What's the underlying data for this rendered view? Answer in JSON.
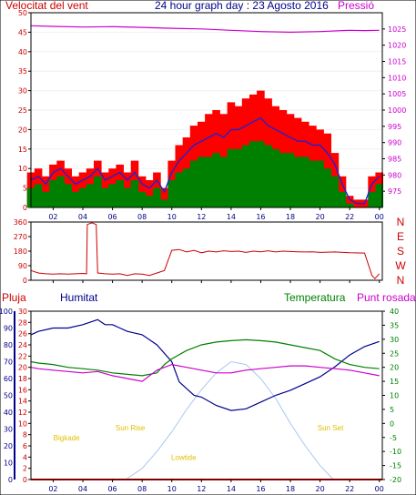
{
  "colors": {
    "wind_max": "#ff0000",
    "wind_avg": "#2222cc",
    "wind_min": "#008000",
    "pressure": "#cc00cc",
    "direction": "#cc0000",
    "rain": "#ff0000",
    "humidity": "#00008b",
    "temperature": "#008000",
    "dewpoint": "#cc00cc",
    "sun_curve": "#a8c8f0",
    "marker_text": "#e0c000",
    "tick_left": "#cc0000",
    "tick_right": "#cc00cc",
    "tick_x": "#000080"
  },
  "chart_data": [
    {
      "id": "wind-pressure",
      "type": "line",
      "title": "24 hour graph day : 23 Agosto 2016",
      "left_label": "Velocitat del vent",
      "right_label": "Pressió",
      "x_ticks": [
        "02",
        "04",
        "06",
        "08",
        "10",
        "12",
        "14",
        "16",
        "18",
        "20",
        "22",
        "00"
      ],
      "xlim": [
        0.5,
        24.2
      ],
      "ylim": [
        0,
        50
      ],
      "y_ticks": [
        "0",
        "5",
        "10",
        "15",
        "20",
        "25",
        "30",
        "35",
        "40",
        "45",
        "50"
      ],
      "y2lim": [
        970,
        1030
      ],
      "y2_ticks": [
        "975",
        "980",
        "985",
        "990",
        "995",
        "1000",
        "1005",
        "1010",
        "1015",
        "1020",
        "1025"
      ],
      "series": [
        {
          "key": "wind_max",
          "style": "bars",
          "x": [
            0.5,
            1,
            1.5,
            2,
            2.5,
            3,
            3.5,
            4,
            4.5,
            5,
            5.5,
            6,
            6.5,
            7,
            7.5,
            8,
            8.5,
            9,
            9.5,
            10,
            10.5,
            11,
            11.5,
            12,
            12.5,
            13,
            13.5,
            14,
            14.5,
            15,
            15.5,
            16,
            16.5,
            17,
            17.5,
            18,
            18.5,
            19,
            19.5,
            20,
            20.5,
            21,
            21.5,
            22,
            22.5,
            23,
            23.5,
            24
          ],
          "y": [
            9,
            10,
            8,
            11,
            12,
            10,
            8,
            9,
            10,
            12,
            9,
            10,
            11,
            9,
            12,
            8,
            7,
            9,
            5,
            12,
            16,
            18,
            21,
            22,
            24,
            25,
            24,
            27,
            26,
            28,
            29,
            30,
            28,
            26,
            25,
            24,
            23,
            22,
            21,
            20,
            19,
            14,
            8,
            3,
            2,
            2,
            8,
            9
          ]
        },
        {
          "key": "wind_avg",
          "style": "line",
          "x": [
            0.5,
            1,
            1.5,
            2,
            2.5,
            3,
            3.5,
            4,
            4.5,
            5,
            5.5,
            6,
            6.5,
            7,
            7.5,
            8,
            8.5,
            9,
            9.5,
            10,
            10.5,
            11,
            11.5,
            12,
            12.5,
            13,
            13.5,
            14,
            14.5,
            15,
            15.5,
            16,
            16.5,
            17,
            17.5,
            18,
            18.5,
            19,
            19.5,
            20,
            20.5,
            21,
            21.5,
            22,
            22.5,
            23,
            23.5,
            24
          ],
          "y": [
            7,
            8,
            6,
            9,
            10,
            8,
            6,
            7,
            8,
            10,
            7,
            8,
            9,
            7,
            9,
            6,
            5,
            7,
            4,
            9,
            12,
            14,
            16,
            17,
            18,
            19,
            18,
            20,
            20,
            21,
            22,
            23,
            21,
            20,
            19,
            18,
            17,
            17,
            16,
            16,
            14,
            11,
            6,
            2,
            1,
            1,
            6,
            8
          ]
        },
        {
          "key": "wind_min",
          "style": "bars",
          "x": [
            0.5,
            1,
            1.5,
            2,
            2.5,
            3,
            3.5,
            4,
            4.5,
            5,
            5.5,
            6,
            6.5,
            7,
            7.5,
            8,
            8.5,
            9,
            9.5,
            10,
            10.5,
            11,
            11.5,
            12,
            12.5,
            13,
            13.5,
            14,
            14.5,
            15,
            15.5,
            16,
            16.5,
            17,
            17.5,
            18,
            18.5,
            19,
            19.5,
            20,
            20.5,
            21,
            21.5,
            22,
            22.5,
            23,
            23.5,
            24
          ],
          "y": [
            5,
            6,
            4,
            7,
            8,
            6,
            4,
            5,
            6,
            8,
            5,
            6,
            7,
            5,
            7,
            4,
            3,
            5,
            2,
            7,
            9,
            10,
            12,
            13,
            13,
            14,
            13,
            15,
            15,
            16,
            17,
            17,
            16,
            15,
            14,
            14,
            13,
            13,
            12,
            12,
            10,
            8,
            4,
            1,
            0,
            0,
            4,
            6
          ]
        },
        {
          "key": "pressure",
          "style": "line",
          "axis": "right",
          "x": [
            0.5,
            2,
            4,
            6,
            8,
            10,
            12,
            14,
            16,
            18,
            20,
            22,
            23,
            24
          ],
          "y": [
            1026,
            1025.8,
            1025.6,
            1025.7,
            1025.5,
            1025.2,
            1025,
            1024.6,
            1024.2,
            1024,
            1024.2,
            1024.6,
            1024.5,
            1024.6
          ]
        }
      ]
    },
    {
      "id": "wind-direction",
      "type": "line",
      "xlim": [
        0.5,
        24.2
      ],
      "ylim": [
        0,
        360
      ],
      "y_ticks": [
        "0",
        "90",
        "180",
        "270",
        "360"
      ],
      "right_ticks": [
        "N",
        "W",
        "S",
        "E",
        "N"
      ],
      "series": [
        {
          "key": "direction",
          "style": "line",
          "x": [
            0.5,
            1,
            1.5,
            2,
            2.5,
            3,
            3.5,
            4,
            4.25,
            4.3,
            4.6,
            4.9,
            5,
            5.5,
            6,
            6.5,
            7,
            7.5,
            8,
            8.5,
            9,
            9.5,
            10,
            10.5,
            11,
            11.5,
            12,
            12.5,
            13,
            13.5,
            14,
            14.5,
            15,
            15.5,
            16,
            16.5,
            17,
            17.5,
            18,
            18.5,
            19,
            19.5,
            20,
            21,
            22,
            23,
            23.5,
            23.7,
            24
          ],
          "y": [
            60,
            45,
            40,
            38,
            40,
            38,
            40,
            42,
            40,
            345,
            355,
            345,
            45,
            40,
            38,
            40,
            30,
            40,
            38,
            30,
            45,
            60,
            185,
            190,
            175,
            185,
            170,
            180,
            175,
            182,
            178,
            180,
            172,
            180,
            176,
            182,
            175,
            180,
            178,
            176,
            175,
            176,
            172,
            175,
            170,
            168,
            30,
            10,
            40
          ]
        }
      ]
    },
    {
      "id": "temp-humidity",
      "type": "line",
      "left_label": "Pluja",
      "left_label2": "Humitat",
      "right_label": "Temperatura",
      "right_label2": "Punt rosada",
      "xlim": [
        0.5,
        24.2
      ],
      "x_ticks": [
        "02",
        "04",
        "06",
        "08",
        "10",
        "12",
        "14",
        "16",
        "18",
        "20",
        "22",
        "00"
      ],
      "rain_ticks": [
        "0",
        "2",
        "4",
        "6",
        "8",
        "10",
        "12",
        "14",
        "16",
        "18",
        "20",
        "22",
        "24",
        "26",
        "28",
        "30"
      ],
      "humidity_ticks": [
        "0",
        "10",
        "20",
        "30",
        "40",
        "50",
        "60",
        "70",
        "80",
        "90",
        "100"
      ],
      "temp_lim": [
        -20,
        40
      ],
      "temp_ticks": [
        "-20",
        "-15",
        "-10",
        "-5",
        "0",
        "5",
        "10",
        "15",
        "20",
        "25",
        "30",
        "35",
        "40"
      ],
      "series": [
        {
          "key": "humidity",
          "style": "line",
          "axis": "humidity",
          "x": [
            0.5,
            1,
            2,
            3,
            4,
            5,
            5.5,
            6,
            6.5,
            7,
            8,
            9,
            10,
            10.5,
            11,
            11.5,
            12,
            13,
            14,
            15,
            16,
            17,
            18,
            19,
            20,
            21,
            22,
            23,
            24
          ],
          "y": [
            86,
            88,
            90,
            90,
            92,
            95,
            92,
            92,
            90,
            88,
            86,
            80,
            70,
            58,
            54,
            50,
            49,
            44,
            41,
            42,
            46,
            50,
            53,
            57,
            61,
            67,
            74,
            79,
            82
          ]
        },
        {
          "key": "temperature",
          "style": "line",
          "axis": "temp",
          "x": [
            0.5,
            1,
            2,
            3,
            4,
            5,
            6,
            7,
            8,
            9,
            9.5,
            10,
            11,
            12,
            13,
            14,
            15,
            16,
            17,
            18,
            19,
            20,
            21,
            22,
            23,
            24
          ],
          "y": [
            22,
            21.5,
            21,
            20,
            19.5,
            19,
            18,
            17.5,
            17,
            18,
            21,
            23,
            26,
            28,
            29,
            29.5,
            29.8,
            29.5,
            29,
            28,
            27,
            26,
            23,
            21,
            20,
            19.5
          ]
        },
        {
          "key": "dewpoint",
          "style": "line",
          "axis": "temp",
          "x": [
            0.5,
            1,
            2,
            3,
            4,
            5,
            6,
            7,
            8,
            9,
            10,
            11,
            12,
            13,
            14,
            15,
            16,
            17,
            18,
            19,
            20,
            21,
            22,
            23,
            24
          ],
          "y": [
            20,
            19.5,
            19,
            18.5,
            18,
            18.5,
            17,
            16,
            15,
            19,
            21,
            20,
            19,
            18,
            18,
            19,
            19.5,
            20,
            20.5,
            20.5,
            20,
            19.5,
            19,
            18,
            17
          ]
        },
        {
          "key": "sun_curve",
          "style": "line",
          "axis": "temp",
          "x": [
            6.9,
            8,
            9,
            10,
            11,
            12,
            13,
            14,
            15,
            16,
            17,
            18,
            19,
            20,
            20.9
          ],
          "y": [
            -20,
            -16,
            -10,
            -3,
            5,
            12,
            18,
            22,
            21,
            16,
            9,
            0,
            -8,
            -15,
            -20
          ]
        },
        {
          "key": "rain",
          "style": "line",
          "axis": "rain",
          "x": [
            0.5,
            24.2
          ],
          "y": [
            0,
            0
          ]
        }
      ],
      "markers": [
        {
          "label": "Bigkade",
          "x": 2.9,
          "level": 4
        },
        {
          "label": "Sun Rise",
          "x": 7.2,
          "level": 5
        },
        {
          "label": "Lowtide",
          "x": 10.8,
          "level": 2
        },
        {
          "label": "Sun Set",
          "x": 20.7,
          "level": 5
        }
      ]
    }
  ]
}
